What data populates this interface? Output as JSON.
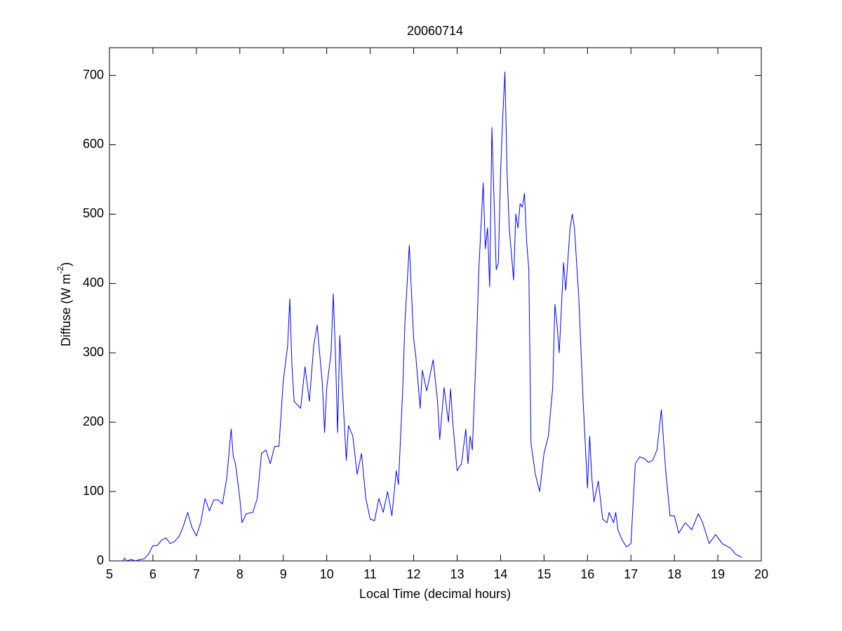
{
  "chart_data": {
    "type": "line",
    "title": "20060714",
    "xlabel": "Local Time (decimal hours)",
    "ylabel": {
      "text": "Diffuse (W m",
      "superscript": "-2",
      "suffix": ")"
    },
    "xlim": [
      5,
      20
    ],
    "ylim": [
      0,
      740
    ],
    "xticks": [
      5,
      6,
      7,
      8,
      9,
      10,
      11,
      12,
      13,
      14,
      15,
      16,
      17,
      18,
      19,
      20
    ],
    "yticks": [
      0,
      100,
      200,
      300,
      400,
      500,
      600,
      700
    ],
    "grid": false,
    "series": [
      {
        "color": "#0000ff",
        "x": [
          5.3,
          5.35,
          5.4,
          5.5,
          5.6,
          5.7,
          5.8,
          5.9,
          6.0,
          6.1,
          6.2,
          6.3,
          6.4,
          6.5,
          6.6,
          6.7,
          6.8,
          6.9,
          7.0,
          7.1,
          7.2,
          7.3,
          7.4,
          7.5,
          7.6,
          7.7,
          7.8,
          7.85,
          7.9,
          8.0,
          8.05,
          8.15,
          8.3,
          8.4,
          8.5,
          8.6,
          8.7,
          8.8,
          8.9,
          9.0,
          9.1,
          9.15,
          9.2,
          9.25,
          9.4,
          9.5,
          9.6,
          9.7,
          9.78,
          9.85,
          9.9,
          9.95,
          10.0,
          10.1,
          10.15,
          10.2,
          10.25,
          10.3,
          10.35,
          10.45,
          10.5,
          10.6,
          10.7,
          10.8,
          10.9,
          11.0,
          11.1,
          11.2,
          11.3,
          11.4,
          11.5,
          11.6,
          11.65,
          11.75,
          11.8,
          11.9,
          12.0,
          12.05,
          12.15,
          12.2,
          12.3,
          12.45,
          12.55,
          12.6,
          12.7,
          12.8,
          12.85,
          12.9,
          13.0,
          13.1,
          13.2,
          13.25,
          13.3,
          13.35,
          13.45,
          13.5,
          13.6,
          13.65,
          13.7,
          13.75,
          13.8,
          13.85,
          13.9,
          13.95,
          14.0,
          14.05,
          14.1,
          14.15,
          14.2,
          14.3,
          14.35,
          14.4,
          14.45,
          14.5,
          14.55,
          14.6,
          14.65,
          14.7,
          14.8,
          14.9,
          15.0,
          15.1,
          15.2,
          15.25,
          15.3,
          15.35,
          15.45,
          15.5,
          15.6,
          15.65,
          15.7,
          15.75,
          15.8,
          15.9,
          16.0,
          16.05,
          16.1,
          16.15,
          16.25,
          16.35,
          16.45,
          16.5,
          16.6,
          16.65,
          16.7,
          16.8,
          16.9,
          17.0,
          17.1,
          17.2,
          17.3,
          17.4,
          17.5,
          17.6,
          17.7,
          17.8,
          17.9,
          18.0,
          18.1,
          18.25,
          18.4,
          18.55,
          18.65,
          18.8,
          18.95,
          19.1,
          19.3,
          19.4,
          19.55
        ],
        "values": [
          0,
          4,
          0,
          2,
          0,
          2,
          3,
          10,
          22,
          22,
          30,
          33,
          25,
          28,
          35,
          50,
          70,
          48,
          36,
          55,
          90,
          72,
          88,
          88,
          82,
          120,
          190,
          150,
          140,
          90,
          55,
          68,
          70,
          90,
          155,
          160,
          140,
          165,
          165,
          260,
          310,
          378,
          280,
          230,
          220,
          280,
          230,
          310,
          340,
          290,
          255,
          185,
          250,
          300,
          385,
          300,
          185,
          325,
          260,
          145,
          195,
          180,
          125,
          155,
          90,
          60,
          58,
          90,
          70,
          100,
          65,
          130,
          110,
          250,
          345,
          455,
          320,
          295,
          220,
          275,
          245,
          290,
          230,
          175,
          250,
          200,
          248,
          200,
          130,
          140,
          190,
          140,
          180,
          160,
          320,
          420,
          545,
          450,
          480,
          395,
          625,
          520,
          420,
          430,
          560,
          640,
          705,
          560,
          480,
          405,
          500,
          480,
          515,
          510,
          530,
          460,
          420,
          170,
          125,
          100,
          155,
          180,
          250,
          370,
          340,
          300,
          430,
          390,
          480,
          500,
          480,
          430,
          380,
          230,
          105,
          180,
          120,
          85,
          115,
          60,
          55,
          70,
          55,
          70,
          45,
          30,
          20,
          25,
          140,
          150,
          148,
          142,
          145,
          160,
          218,
          130,
          65,
          65,
          40,
          55,
          45,
          68,
          55,
          25,
          38,
          25,
          18,
          10,
          5
        ]
      }
    ]
  }
}
